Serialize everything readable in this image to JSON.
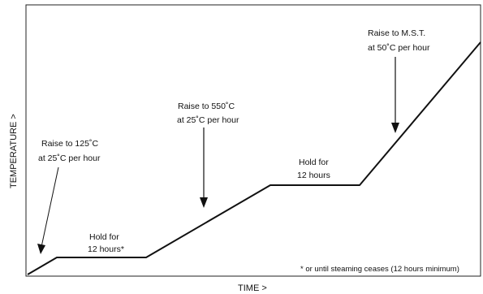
{
  "diagram": {
    "axes": {
      "x_label": "TIME >",
      "y_label": "TEMPERATURE >"
    },
    "annotations": {
      "raise_125": {
        "line1": "Raise to 125˚C",
        "line2": "at 25˚C per hour"
      },
      "hold_1": {
        "line1": "Hold for",
        "line2": "12 hours*"
      },
      "raise_550": {
        "line1": "Raise to 550˚C",
        "line2": "at 25˚C per hour"
      },
      "hold_2": {
        "line1": "Hold for",
        "line2": "12 hours"
      },
      "raise_mst": {
        "line1": "Raise to M.S.T.",
        "line2": "at 50˚C per hour"
      }
    },
    "footnote": "* or until steaming ceases (12 hours minimum)"
  }
}
